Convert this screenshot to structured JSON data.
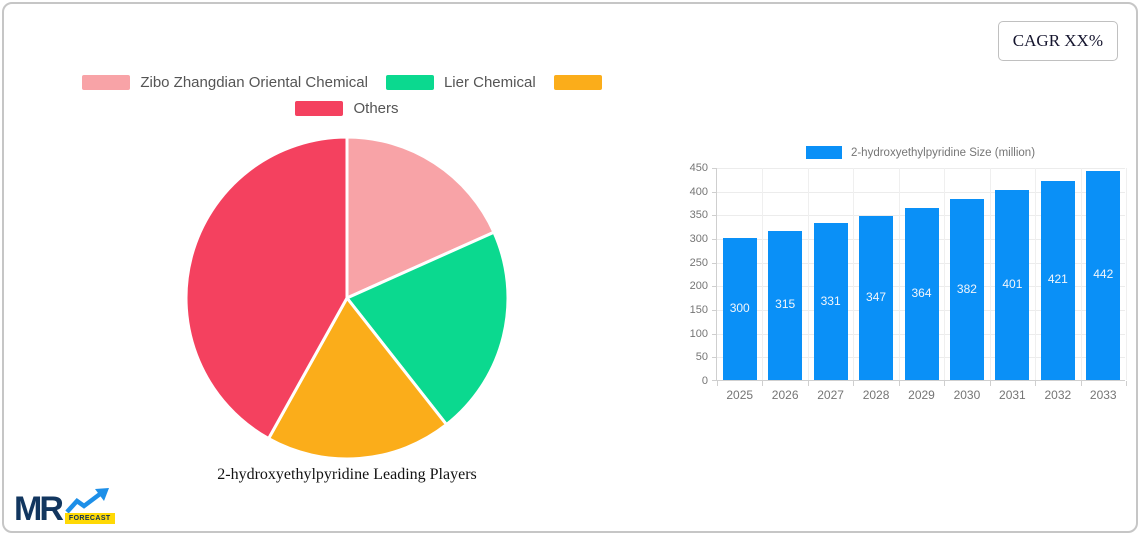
{
  "cagr_badge": {
    "label": "CAGR XX%"
  },
  "logo": {
    "text": "MR",
    "sub": "FORECAST",
    "text_color": "#12365f",
    "arrow_color": "#1d8fe8",
    "badge_color": "#ffd905"
  },
  "chart_data": [
    {
      "type": "pie",
      "title": "2-hydroxyethylpyridine Leading Players",
      "labels": [
        "Zibo Zhangdian Oriental Chemical",
        "Lier Chemical",
        "",
        "Others"
      ],
      "values": [
        18.3,
        21.1,
        18.7,
        41.9
      ],
      "colors": [
        "#f8a3a7",
        "#0bd98f",
        "#fbad1a",
        "#f4415f"
      ],
      "start_angle_deg": 0,
      "direction": "clockwise",
      "legend_position": "top",
      "slice_gap_color": "#ffffff"
    },
    {
      "type": "bar",
      "legend": "2-hydroxyethylpyridine Size (million)",
      "categories": [
        "2025",
        "2026",
        "2027",
        "2028",
        "2029",
        "2030",
        "2031",
        "2032",
        "2033"
      ],
      "values": [
        300,
        315,
        331,
        347,
        364,
        382,
        401,
        421,
        442
      ],
      "bar_color": "#0a90f7",
      "value_label_color": "#f2f6fb",
      "value_label_position": "inside-middle",
      "ylim": [
        0,
        450
      ],
      "ytick_step": 50,
      "grid": true,
      "legend_position": "top"
    }
  ]
}
